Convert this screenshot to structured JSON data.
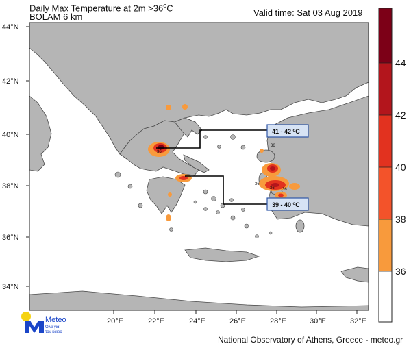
{
  "title": {
    "line1": "Daily Max Temperature at 2m >36",
    "line1_superscript": "o",
    "line1_suffix": "C",
    "line2": "BOLAM 6 km",
    "valid_time": "Valid time: Sat 03 Aug 2019"
  },
  "footer": "National Observatory of Athens, Greece - meteo.gr",
  "logo": {
    "name": "Meteo",
    "tagline_1": "Όλα για",
    "tagline_2": "τον καιρό",
    "colors": {
      "sun": "#f5d312",
      "mark": "#1b46c8"
    }
  },
  "map": {
    "lat_ticks": [
      "44°N",
      "42°N",
      "40°N",
      "38°N",
      "36°N",
      "34°N"
    ],
    "lon_ticks": [
      "20°E",
      "22°E",
      "24°E",
      "26°E",
      "28°E",
      "30°E",
      "32°E"
    ],
    "colors": {
      "sea": "#ffffff",
      "land": "#b5b5b5",
      "border": "#4a4a4a"
    }
  },
  "annotations": [
    {
      "text_main": "41 - 42 ",
      "text_sup": "o",
      "text_unit": "C"
    },
    {
      "text_main": "39 - 40 ",
      "text_sup": "o",
      "text_unit": "C"
    }
  ],
  "contour_labels": [
    "36",
    "36",
    "36",
    "36",
    "36"
  ],
  "colorbar": {
    "labels": [
      "44",
      "42",
      "40",
      "38",
      "36"
    ],
    "colors": [
      "#7c0017",
      "#b3151c",
      "#e2321f",
      "#f3532a",
      "#f89a3c",
      "#ffffff"
    ]
  }
}
